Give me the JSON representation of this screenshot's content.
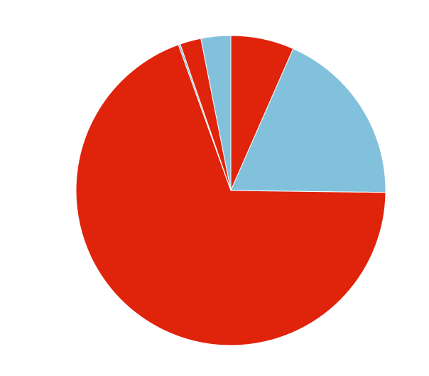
{
  "chart_data": {
    "type": "pie",
    "title": "",
    "start_angle_deg": 90,
    "direction": "clockwise",
    "slices": [
      {
        "value": 6.6,
        "color": "#e0230b"
      },
      {
        "value": 18.6,
        "color": "#82c1db"
      },
      {
        "value": 69.3,
        "color": "#e0230b"
      },
      {
        "value": 0.2,
        "color": "#82c1db"
      },
      {
        "value": 2.2,
        "color": "#e0230b"
      },
      {
        "value": 3.1,
        "color": "#82c1db"
      }
    ]
  },
  "colors": {
    "primary": "#e0230b",
    "secondary": "#82c1db",
    "background": "#ffffff"
  }
}
